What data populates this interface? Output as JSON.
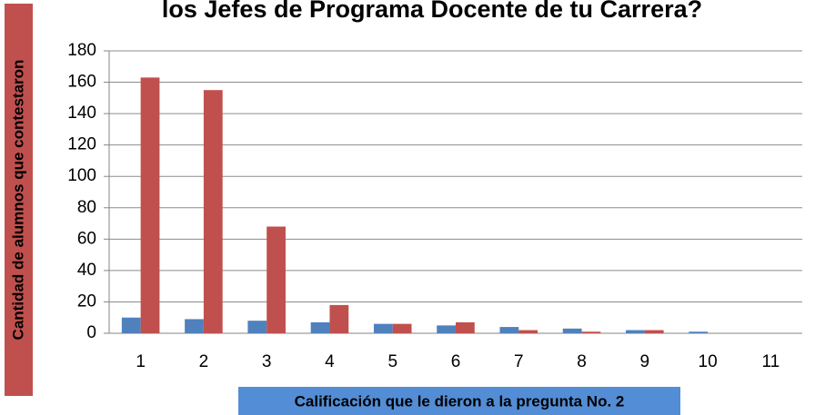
{
  "chart_data": {
    "type": "bar",
    "title": "los Jefes de Programa Docente de tu  Carrera?",
    "x_label": "Calificación que le dieron a la pregunta No. 2",
    "y_label": "Cantidad de alumnos que contestaron",
    "categories": [
      "1",
      "2",
      "3",
      "4",
      "5",
      "6",
      "7",
      "8",
      "9",
      "10",
      "11"
    ],
    "series": [
      {
        "color": "#4f81bd",
        "values": [
          10,
          9,
          8,
          7,
          6,
          5,
          4,
          3,
          2,
          1,
          0
        ]
      },
      {
        "color": "#c0504d",
        "values": [
          163,
          155,
          68,
          18,
          6,
          7,
          2,
          1,
          2,
          0,
          0
        ]
      }
    ],
    "ylim": [
      0,
      180
    ],
    "yticks": [
      0,
      20,
      40,
      60,
      80,
      100,
      120,
      140,
      160,
      180
    ],
    "grid": true
  }
}
